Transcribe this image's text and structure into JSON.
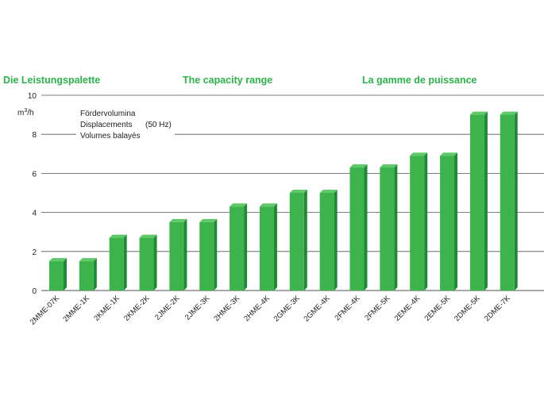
{
  "titles": {
    "german": "Die Leistungspalette",
    "english": "The capacity range",
    "french": "La gamme de puissance"
  },
  "legend_note": {
    "line1": "Fördervolumina",
    "line2": "Displacements",
    "freq": "(50 Hz)",
    "line3": "Volumes balayés"
  },
  "unit": {
    "base": "m",
    "sup": "3",
    "rest": "/h"
  },
  "colors": {
    "bar_front": "#3cb44b",
    "bar_side": "#1e8a36",
    "bar_top": "#5fc96a",
    "title": "#2bb34a"
  },
  "chart_data": {
    "type": "bar",
    "categories": [
      "2MME-07K",
      "2MME-1K",
      "2KME-1K",
      "2KME-2K",
      "2JME-2K",
      "2JME-3K",
      "2HME-3K",
      "2HME-4K",
      "2GME-3K",
      "2GME-4K",
      "2FME-4K",
      "2FME-5K",
      "2EME-4K",
      "2EME-5K",
      "2DME-5K",
      "2DME-7K"
    ],
    "values": [
      1.5,
      1.5,
      2.7,
      2.7,
      3.5,
      3.5,
      4.3,
      4.3,
      5.0,
      5.0,
      6.3,
      6.3,
      6.9,
      6.9,
      9.0,
      9.0
    ],
    "ylim": [
      0,
      10
    ],
    "yticks": [
      0,
      2,
      4,
      6,
      8,
      10
    ],
    "ylabel": "m3/h",
    "grid": true
  }
}
